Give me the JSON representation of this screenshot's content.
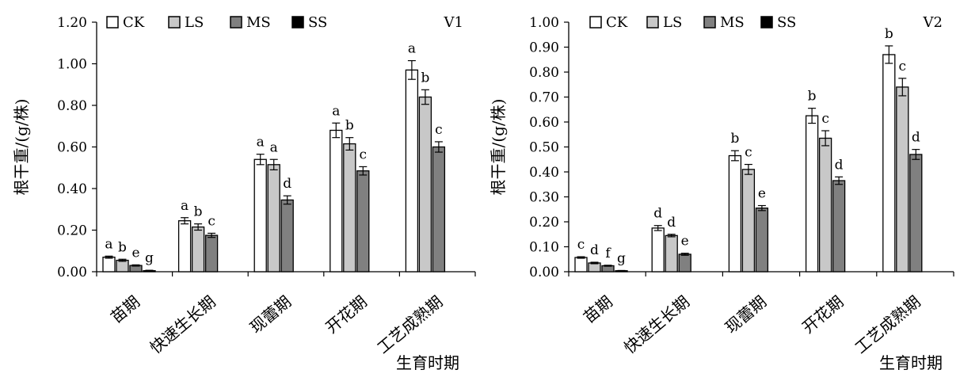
{
  "chart_data": [
    {
      "type": "bar",
      "panel_label": "V1",
      "ylabel": "根干重/(g/株)",
      "xlabel": "生育时期",
      "ylim": [
        0,
        1.2
      ],
      "y_ticks": [
        "0.00",
        "0.20",
        "0.40",
        "0.60",
        "0.80",
        "1.00",
        "1.20"
      ],
      "categories": [
        "苗期",
        "快速生长期",
        "现蕾期",
        "开花期",
        "工艺成熟期"
      ],
      "legend_position": "top",
      "series": [
        {
          "name": "CK",
          "color": "#ffffff",
          "values": [
            0.07,
            0.245,
            0.54,
            0.68,
            0.97
          ],
          "errors": [
            0.005,
            0.015,
            0.025,
            0.035,
            0.045
          ],
          "letters": [
            "a",
            "a",
            "a",
            "a",
            "a"
          ]
        },
        {
          "name": "LS",
          "color": "#c8c8c8",
          "values": [
            0.055,
            0.215,
            0.515,
            0.615,
            0.84
          ],
          "errors": [
            0.005,
            0.015,
            0.025,
            0.03,
            0.035
          ],
          "letters": [
            "b",
            "b",
            "a",
            "b",
            "b"
          ]
        },
        {
          "name": "MS",
          "color": "#808080",
          "values": [
            0.03,
            0.175,
            0.345,
            0.485,
            0.6
          ],
          "errors": [
            0.003,
            0.01,
            0.02,
            0.02,
            0.025
          ],
          "letters": [
            "e",
            "c",
            "d",
            "c",
            "c"
          ]
        },
        {
          "name": "SS",
          "color": "#000000",
          "values": [
            0.005,
            null,
            null,
            null,
            null
          ],
          "errors": [
            0.002,
            null,
            null,
            null,
            null
          ],
          "letters": [
            "g",
            null,
            null,
            null,
            null
          ]
        }
      ]
    },
    {
      "type": "bar",
      "panel_label": "V2",
      "ylabel": "根干重/(g/株)",
      "xlabel": "生育时期",
      "ylim": [
        0,
        1.0
      ],
      "y_ticks": [
        "0.00",
        "0.10",
        "0.20",
        "0.30",
        "0.40",
        "0.50",
        "0.60",
        "0.70",
        "0.80",
        "0.90",
        "1.00"
      ],
      "categories": [
        "苗期",
        "快速生长期",
        "现蕾期",
        "开花期",
        "工艺成熟期"
      ],
      "legend_position": "top",
      "series": [
        {
          "name": "CK",
          "color": "#ffffff",
          "values": [
            0.057,
            0.175,
            0.465,
            0.625,
            0.87
          ],
          "errors": [
            0.003,
            0.01,
            0.02,
            0.03,
            0.035
          ],
          "letters": [
            "c",
            "d",
            "b",
            "b",
            "b"
          ]
        },
        {
          "name": "LS",
          "color": "#c8c8c8",
          "values": [
            0.035,
            0.145,
            0.41,
            0.535,
            0.74
          ],
          "errors": [
            0.003,
            0.005,
            0.02,
            0.03,
            0.035
          ],
          "letters": [
            "d",
            "d",
            "c",
            "c",
            "c"
          ]
        },
        {
          "name": "MS",
          "color": "#808080",
          "values": [
            0.024,
            0.07,
            0.255,
            0.365,
            0.47
          ],
          "errors": [
            0.002,
            0.004,
            0.01,
            0.015,
            0.02
          ],
          "letters": [
            "f",
            "e",
            "e",
            "d",
            "d"
          ]
        },
        {
          "name": "SS",
          "color": "#000000",
          "values": [
            0.004,
            null,
            null,
            null,
            null
          ],
          "errors": [
            0.001,
            null,
            null,
            null,
            null
          ],
          "letters": [
            "g",
            null,
            null,
            null,
            null
          ]
        }
      ]
    }
  ]
}
